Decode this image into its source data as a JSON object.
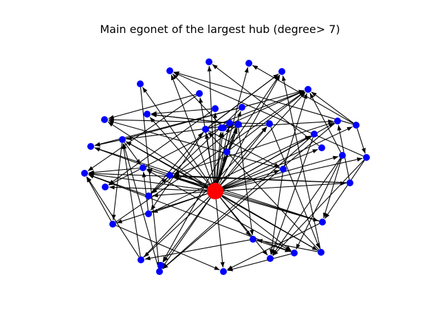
{
  "figure": {
    "title": "Main egonet of the largest hub (degree> 7)"
  },
  "colors": {
    "hub": "#ff0000",
    "node": "#0000ff",
    "edge": "#000000",
    "background": "#ffffff"
  },
  "graph": {
    "hub_id": "hub",
    "nodes": [
      {
        "id": "hub",
        "role": "hub"
      },
      {
        "id": "n1"
      },
      {
        "id": "n2"
      },
      {
        "id": "n3"
      },
      {
        "id": "n4"
      },
      {
        "id": "n5"
      },
      {
        "id": "n6"
      },
      {
        "id": "n7"
      },
      {
        "id": "n8"
      },
      {
        "id": "n9"
      },
      {
        "id": "n10"
      },
      {
        "id": "n11"
      },
      {
        "id": "n12"
      },
      {
        "id": "n13"
      },
      {
        "id": "n14"
      },
      {
        "id": "n15"
      },
      {
        "id": "n16"
      },
      {
        "id": "n17"
      },
      {
        "id": "n18"
      },
      {
        "id": "n19"
      },
      {
        "id": "n20"
      },
      {
        "id": "n21"
      },
      {
        "id": "n22"
      },
      {
        "id": "n23"
      },
      {
        "id": "n24"
      },
      {
        "id": "n25"
      },
      {
        "id": "n26"
      },
      {
        "id": "n27"
      },
      {
        "id": "n28"
      },
      {
        "id": "n29"
      },
      {
        "id": "n30"
      },
      {
        "id": "n31"
      },
      {
        "id": "n32"
      },
      {
        "id": "n33"
      },
      {
        "id": "n34"
      },
      {
        "id": "n35"
      },
      {
        "id": "n36"
      },
      {
        "id": "n37"
      },
      {
        "id": "n38"
      },
      {
        "id": "n39"
      },
      {
        "id": "n40"
      },
      {
        "id": "n41"
      },
      {
        "id": "n42"
      },
      {
        "id": "n43"
      },
      {
        "id": "n44"
      },
      {
        "id": "n45"
      },
      {
        "id": "n46"
      }
    ],
    "edges": [
      [
        "hub",
        "n1"
      ],
      [
        "hub",
        "n2"
      ],
      [
        "hub",
        "n3"
      ],
      [
        "hub",
        "n4"
      ],
      [
        "hub",
        "n5"
      ],
      [
        "hub",
        "n6"
      ],
      [
        "hub",
        "n7"
      ],
      [
        "hub",
        "n8"
      ],
      [
        "hub",
        "n9"
      ],
      [
        "hub",
        "n10"
      ],
      [
        "hub",
        "n11"
      ],
      [
        "hub",
        "n12"
      ],
      [
        "hub",
        "n13"
      ],
      [
        "hub",
        "n14"
      ],
      [
        "hub",
        "n15"
      ],
      [
        "hub",
        "n16"
      ],
      [
        "hub",
        "n17"
      ],
      [
        "hub",
        "n18"
      ],
      [
        "hub",
        "n19"
      ],
      [
        "hub",
        "n20"
      ],
      [
        "hub",
        "n21"
      ],
      [
        "hub",
        "n22"
      ],
      [
        "hub",
        "n23"
      ],
      [
        "hub",
        "n24"
      ],
      [
        "hub",
        "n25"
      ],
      [
        "hub",
        "n26"
      ],
      [
        "hub",
        "n27"
      ],
      [
        "hub",
        "n28"
      ],
      [
        "hub",
        "n29"
      ],
      [
        "hub",
        "n30"
      ],
      [
        "hub",
        "n31"
      ],
      [
        "hub",
        "n32"
      ],
      [
        "hub",
        "n33"
      ],
      [
        "hub",
        "n34"
      ],
      [
        "hub",
        "n35"
      ],
      [
        "hub",
        "n36"
      ],
      [
        "hub",
        "n37"
      ],
      [
        "hub",
        "n38"
      ],
      [
        "hub",
        "n39"
      ],
      [
        "hub",
        "n40"
      ],
      [
        "hub",
        "n41"
      ],
      [
        "hub",
        "n42"
      ],
      [
        "hub",
        "n43"
      ],
      [
        "hub",
        "n44"
      ],
      [
        "hub",
        "n45"
      ],
      [
        "hub",
        "n46"
      ],
      [
        "n8",
        "n2"
      ],
      [
        "n8",
        "n4"
      ],
      [
        "n8",
        "n6"
      ],
      [
        "n8",
        "n9"
      ],
      [
        "n11",
        "n15"
      ],
      [
        "n11",
        "n6"
      ],
      [
        "n11",
        "n12"
      ],
      [
        "n11",
        "n14"
      ],
      [
        "n13",
        "n16"
      ],
      [
        "n13",
        "n5"
      ],
      [
        "n13",
        "n31"
      ],
      [
        "n13",
        "n33"
      ],
      [
        "n10",
        "n24"
      ],
      [
        "n10",
        "n41"
      ],
      [
        "n10",
        "n7"
      ],
      [
        "n12",
        "n17"
      ],
      [
        "n12",
        "n25"
      ],
      [
        "n12",
        "n41"
      ],
      [
        "n33",
        "n20"
      ],
      [
        "n33",
        "n42"
      ],
      [
        "n33",
        "n25"
      ],
      [
        "n33",
        "n6"
      ],
      [
        "n14",
        "n24"
      ],
      [
        "n14",
        "n17"
      ],
      [
        "n14",
        "n42"
      ],
      [
        "n36",
        "n26"
      ],
      [
        "n36",
        "n13"
      ],
      [
        "n39",
        "n26"
      ],
      [
        "n39",
        "n6"
      ],
      [
        "n39",
        "n15"
      ],
      [
        "n22",
        "n41"
      ],
      [
        "n22",
        "n24"
      ],
      [
        "n22",
        "n31"
      ],
      [
        "n19",
        "n33"
      ],
      [
        "n19",
        "n24"
      ],
      [
        "n19",
        "n36"
      ],
      [
        "n9",
        "n12"
      ],
      [
        "n9",
        "n15"
      ],
      [
        "n9",
        "n2"
      ],
      [
        "n20",
        "n6"
      ],
      [
        "n20",
        "n17"
      ],
      [
        "n20",
        "n24"
      ],
      [
        "n29",
        "n23"
      ],
      [
        "n29",
        "n27"
      ],
      [
        "n28",
        "n26"
      ],
      [
        "n28",
        "n24"
      ],
      [
        "n16",
        "n14"
      ],
      [
        "n16",
        "n19"
      ],
      [
        "n40",
        "n5"
      ],
      [
        "n40",
        "n6"
      ],
      [
        "n21",
        "n42"
      ],
      [
        "n21",
        "n37"
      ],
      [
        "n37",
        "n18"
      ],
      [
        "n37",
        "n15"
      ],
      [
        "n32",
        "n7"
      ],
      [
        "n32",
        "n6"
      ],
      [
        "n30",
        "n22"
      ],
      [
        "n30",
        "n25"
      ],
      [
        "n43",
        "n5"
      ],
      [
        "n43",
        "n6"
      ],
      [
        "n43",
        "n39"
      ],
      [
        "n31",
        "n21"
      ],
      [
        "n31",
        "n5"
      ],
      [
        "n7",
        "n41"
      ],
      [
        "n7",
        "n18"
      ],
      [
        "n34",
        "n23"
      ],
      [
        "n34",
        "n27"
      ],
      [
        "n44",
        "n2"
      ],
      [
        "n44",
        "n35"
      ],
      [
        "n45",
        "n33"
      ],
      [
        "n45",
        "n27"
      ],
      [
        "n45",
        "n46"
      ],
      [
        "n35",
        "n22"
      ],
      [
        "n35",
        "n16"
      ],
      [
        "n18",
        "n33"
      ],
      [
        "n42",
        "n24"
      ],
      [
        "n1",
        "n18"
      ],
      [
        "n38",
        "n3"
      ]
    ]
  }
}
